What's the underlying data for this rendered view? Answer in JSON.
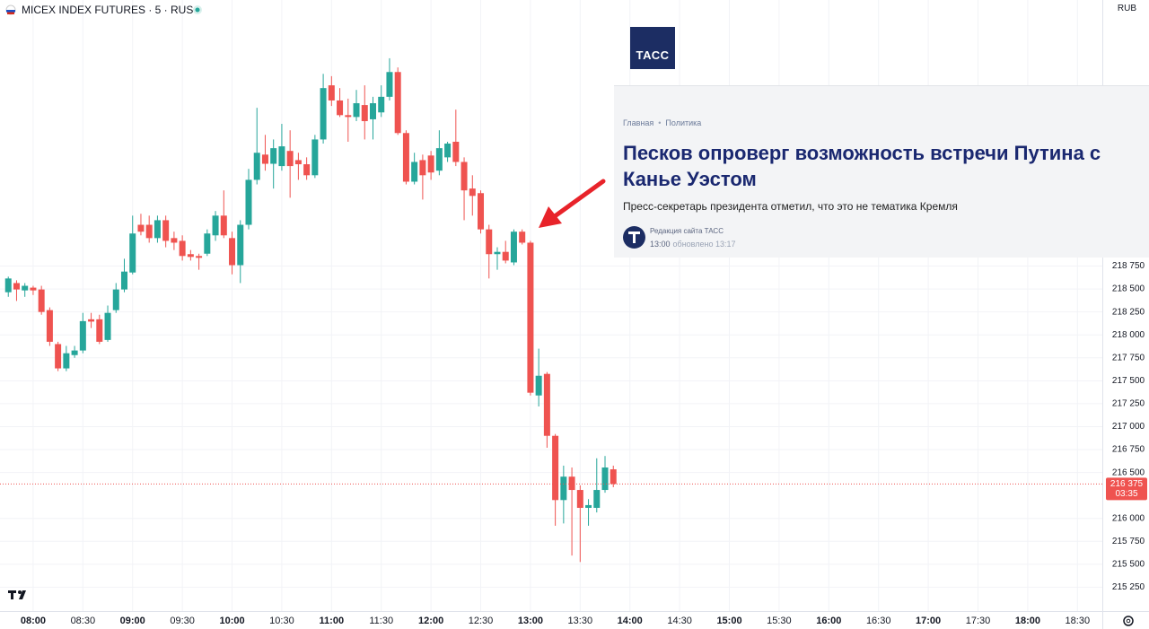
{
  "chart_data": {
    "type": "candlestick",
    "title": "MICEX INDEX FUTURES · 5 · RUS",
    "currency": "RUB",
    "up_color": "#26a69a",
    "down_color": "#ef5350",
    "grid": true,
    "x": [
      "07:45",
      "07:50",
      "07:55",
      "08:00",
      "08:05",
      "08:10",
      "08:15",
      "08:20",
      "08:25",
      "08:30",
      "08:35",
      "08:40",
      "08:45",
      "08:50",
      "08:55",
      "09:00",
      "09:05",
      "09:10",
      "09:15",
      "09:20",
      "09:25",
      "09:30",
      "09:35",
      "09:40",
      "09:45",
      "09:50",
      "09:55",
      "10:00",
      "10:05",
      "10:10",
      "10:15",
      "10:20",
      "10:25",
      "10:30",
      "10:35",
      "10:40",
      "10:45",
      "10:50",
      "10:55",
      "11:00",
      "11:05",
      "11:10",
      "11:15",
      "11:20",
      "11:25",
      "11:30",
      "11:35",
      "11:40",
      "11:45",
      "11:50",
      "11:55",
      "12:00",
      "12:05",
      "12:10",
      "12:15",
      "12:20",
      "12:25",
      "12:30",
      "12:35",
      "12:40",
      "12:45",
      "12:50",
      "12:55",
      "13:00",
      "13:05",
      "13:10",
      "13:15",
      "13:20",
      "13:25",
      "13:30",
      "13:35",
      "13:40",
      "13:45",
      "13:50"
    ],
    "ohlc": [
      [
        218465,
        218635,
        218415,
        218615
      ],
      [
        218565,
        218595,
        218370,
        218495
      ],
      [
        218485,
        218565,
        218415,
        218535
      ],
      [
        218515,
        218535,
        218435,
        218485
      ],
      [
        218495,
        218535,
        218220,
        218250
      ],
      [
        218270,
        218300,
        217880,
        217925
      ],
      [
        217900,
        217925,
        217605,
        217635
      ],
      [
        217635,
        217880,
        217605,
        217800
      ],
      [
        217780,
        217880,
        217750,
        217830
      ],
      [
        217830,
        218240,
        217800,
        218150
      ],
      [
        218170,
        218240,
        218075,
        218145
      ],
      [
        218170,
        218220,
        217900,
        217925
      ],
      [
        217945,
        218320,
        217925,
        218240
      ],
      [
        218270,
        218565,
        218240,
        218495
      ],
      [
        218495,
        218830,
        218465,
        218690
      ],
      [
        218680,
        219300,
        218660,
        219105
      ],
      [
        219200,
        219320,
        219085,
        219125
      ],
      [
        219200,
        219300,
        219005,
        219055
      ],
      [
        219055,
        219300,
        219005,
        219250
      ],
      [
        219250,
        219300,
        218955,
        219025
      ],
      [
        219055,
        219125,
        218925,
        219005
      ],
      [
        219025,
        219085,
        218810,
        218860
      ],
      [
        218880,
        218925,
        218810,
        218850
      ],
      [
        218860,
        218885,
        218710,
        218840
      ],
      [
        218885,
        219150,
        218860,
        219105
      ],
      [
        219085,
        219350,
        219025,
        219300
      ],
      [
        219300,
        219575,
        219055,
        219085
      ],
      [
        219055,
        219125,
        218660,
        218760
      ],
      [
        218760,
        219250,
        218565,
        219200
      ],
      [
        219200,
        219810,
        219150,
        219690
      ],
      [
        219690,
        220475,
        219640,
        219985
      ],
      [
        219965,
        220180,
        219790,
        219865
      ],
      [
        219865,
        220130,
        219595,
        220035
      ],
      [
        219840,
        220300,
        219790,
        220055
      ],
      [
        220005,
        220230,
        219495,
        219840
      ],
      [
        219905,
        219985,
        219690,
        219860
      ],
      [
        219860,
        219935,
        219690,
        219740
      ],
      [
        219740,
        220180,
        219710,
        220130
      ],
      [
        220130,
        220845,
        220085,
        220690
      ],
      [
        220720,
        220820,
        220495,
        220555
      ],
      [
        220555,
        220690,
        220375,
        220395
      ],
      [
        220395,
        220575,
        220105,
        220375
      ],
      [
        220375,
        220670,
        220330,
        220525
      ],
      [
        220505,
        220720,
        220130,
        220330
      ],
      [
        220350,
        220595,
        220130,
        220525
      ],
      [
        220425,
        220720,
        220375,
        220595
      ],
      [
        220595,
        221015,
        220555,
        220865
      ],
      [
        220865,
        220915,
        220180,
        220200
      ],
      [
        220200,
        220230,
        219640,
        219670
      ],
      [
        219670,
        219985,
        219640,
        219885
      ],
      [
        219905,
        219965,
        219475,
        219740
      ],
      [
        219955,
        220005,
        219690,
        219770
      ],
      [
        219790,
        220230,
        219740,
        220035
      ],
      [
        219935,
        220105,
        219885,
        220085
      ],
      [
        220105,
        220455,
        219840,
        219885
      ],
      [
        219885,
        219935,
        219250,
        219575
      ],
      [
        219595,
        219740,
        219300,
        219515
      ],
      [
        219545,
        219575,
        219105,
        219150
      ],
      [
        219150,
        219200,
        218615,
        218880
      ],
      [
        218880,
        218955,
        218710,
        218905
      ],
      [
        218905,
        219025,
        218780,
        218810
      ],
      [
        218790,
        219150,
        218760,
        219125
      ],
      [
        219125,
        219150,
        218985,
        219005
      ],
      [
        219005,
        219025,
        217340,
        217370
      ],
      [
        217340,
        217850,
        217220,
        217555
      ],
      [
        217575,
        217595,
        216770,
        216900
      ],
      [
        216900,
        216920,
        215920,
        216200
      ],
      [
        216200,
        216575,
        215945,
        216455
      ],
      [
        216455,
        216555,
        215595,
        216310
      ],
      [
        216310,
        216360,
        215525,
        216115
      ],
      [
        216115,
        216210,
        215920,
        216145
      ],
      [
        216115,
        216655,
        216065,
        216310
      ],
      [
        216310,
        216680,
        216280,
        216555
      ],
      [
        216535,
        216575,
        216340,
        216375
      ]
    ],
    "xlim": [
      "07:40",
      "18:45"
    ],
    "xticks": [
      "08:00",
      "08:30",
      "09:00",
      "09:30",
      "10:00",
      "10:30",
      "11:00",
      "11:30",
      "12:00",
      "12:30",
      "13:00",
      "13:30",
      "14:00",
      "14:30",
      "15:00",
      "15:30",
      "16:00",
      "16:30",
      "17:00",
      "17:30",
      "18:00",
      "18:30"
    ],
    "ylim": [
      215000,
      221650
    ],
    "yticks": [
      {
        "value": 215250,
        "label": "215 250"
      },
      {
        "value": 215500,
        "label": "215 500"
      },
      {
        "value": 215750,
        "label": "215 750"
      },
      {
        "value": 216000,
        "label": "216 000"
      },
      {
        "value": 216500,
        "label": "216 500"
      },
      {
        "value": 216750,
        "label": "216 750"
      },
      {
        "value": 217000,
        "label": "217 000"
      },
      {
        "value": 217250,
        "label": "217 250"
      },
      {
        "value": 217500,
        "label": "217 500"
      },
      {
        "value": 217750,
        "label": "217 750"
      },
      {
        "value": 218000,
        "label": "218 000"
      },
      {
        "value": 218250,
        "label": "218 250"
      },
      {
        "value": 218500,
        "label": "218 500"
      },
      {
        "value": 218750,
        "label": "218 750"
      }
    ],
    "last_price": {
      "value": 216375,
      "label": "216 375"
    },
    "countdown": "03:35"
  },
  "news": {
    "logo": "ТАСС",
    "breadcrumbs": [
      "Главная",
      "Политика"
    ],
    "headline": "Песков опроверг возможность встречи Путина с Канье Уэстом",
    "lead": "Пресс-секретарь президента отметил, что это не тематика Кремля",
    "author": "Редакция сайта ТАСС",
    "time": "13:00",
    "updated": "обновлено 13:17"
  }
}
